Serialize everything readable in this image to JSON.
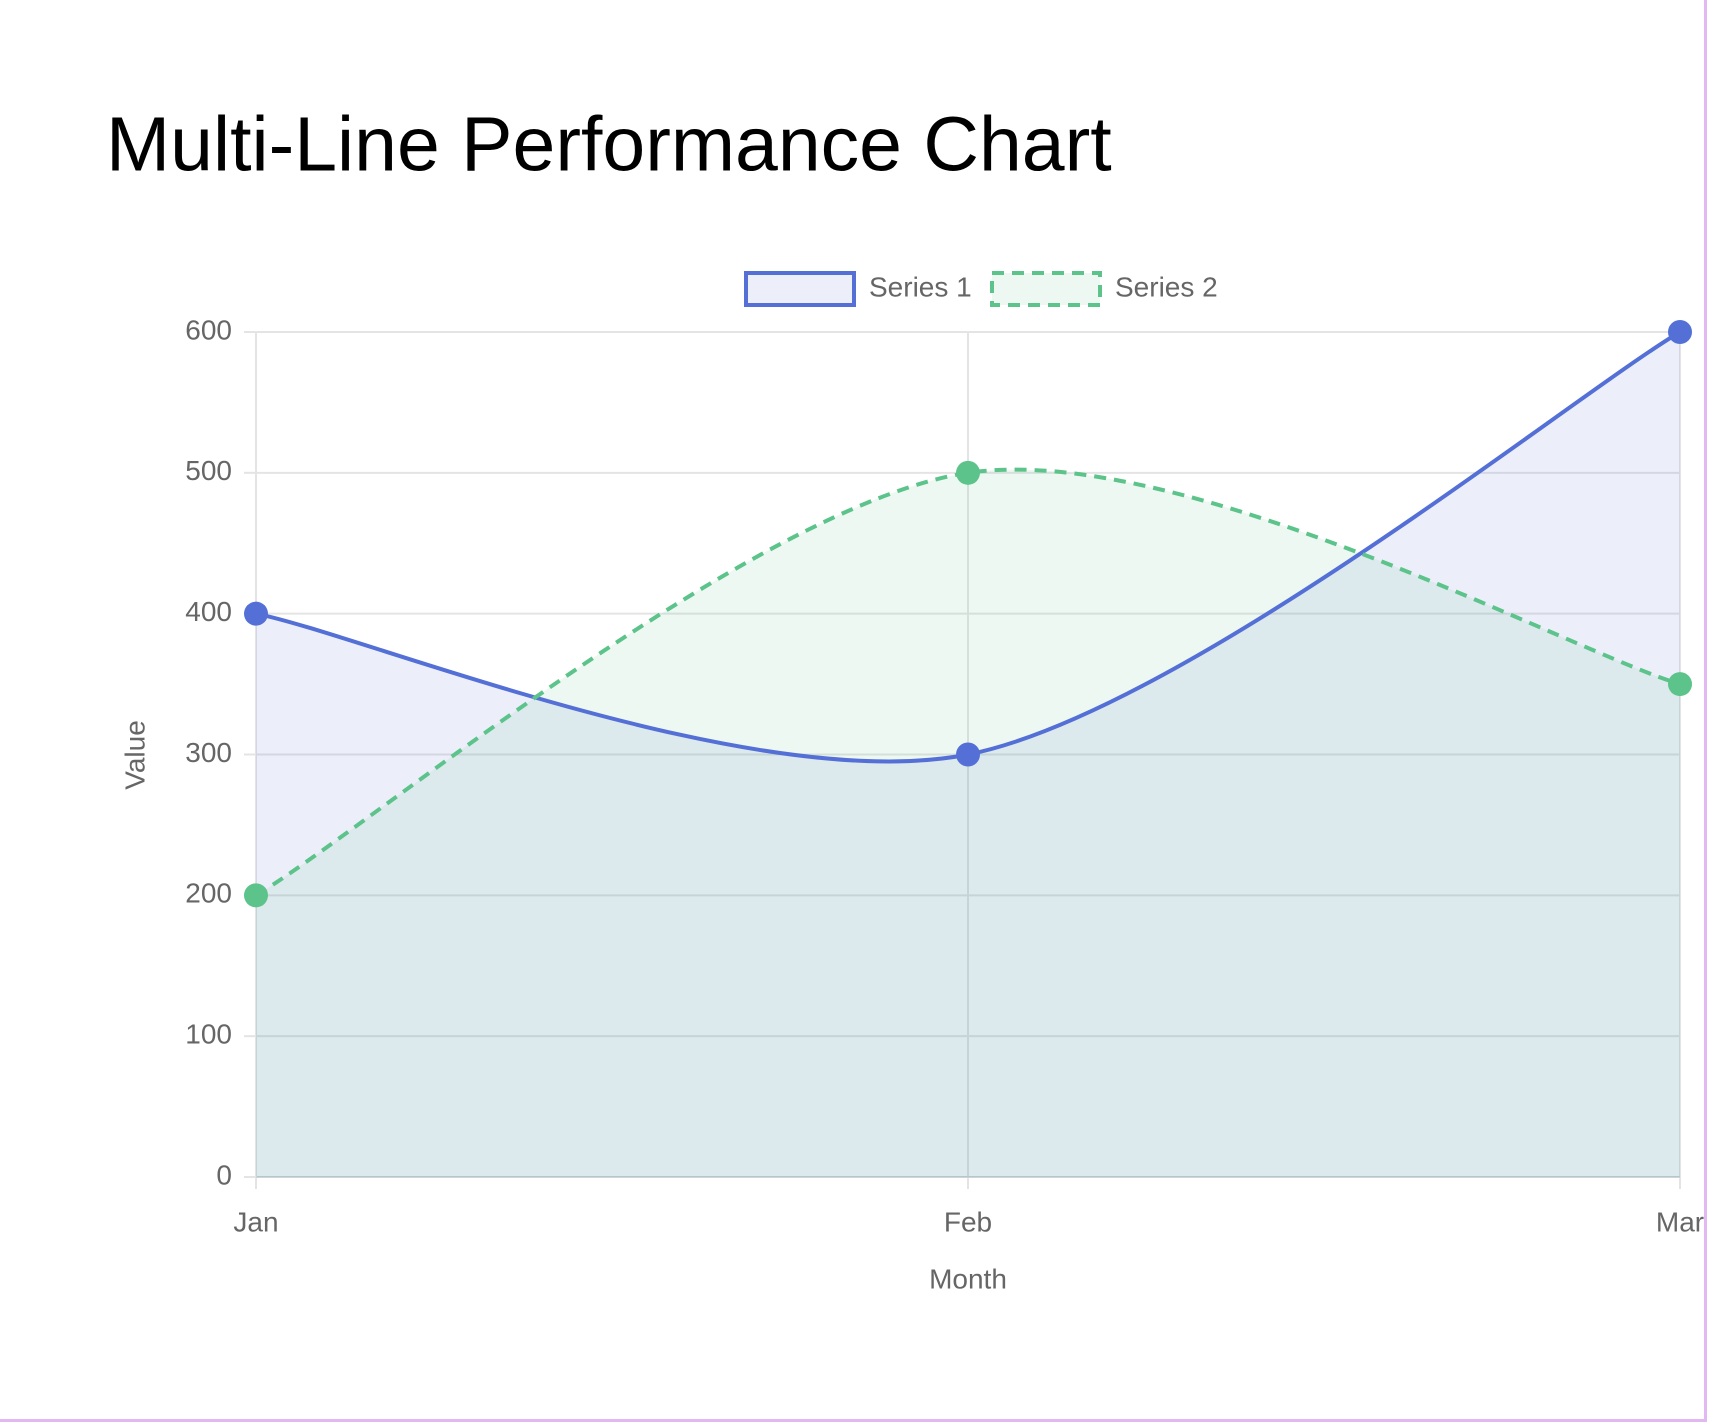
{
  "chart_data": {
    "type": "line",
    "title": "Multi-Line Performance Chart",
    "categories": [
      "Jan",
      "Feb",
      "Mar"
    ],
    "series": [
      {
        "name": "Series 1",
        "color": "#5470d6",
        "values": [
          400,
          300,
          600
        ]
      },
      {
        "name": "Series 2",
        "color": "#5cc38a",
        "values": [
          200,
          500,
          350
        ]
      }
    ],
    "x_label": "Month",
    "y_label": "Value",
    "ylim": [
      0,
      600
    ],
    "yticks": [
      0,
      100,
      200,
      300,
      400,
      500,
      600
    ],
    "grid": true,
    "legend": "top"
  }
}
